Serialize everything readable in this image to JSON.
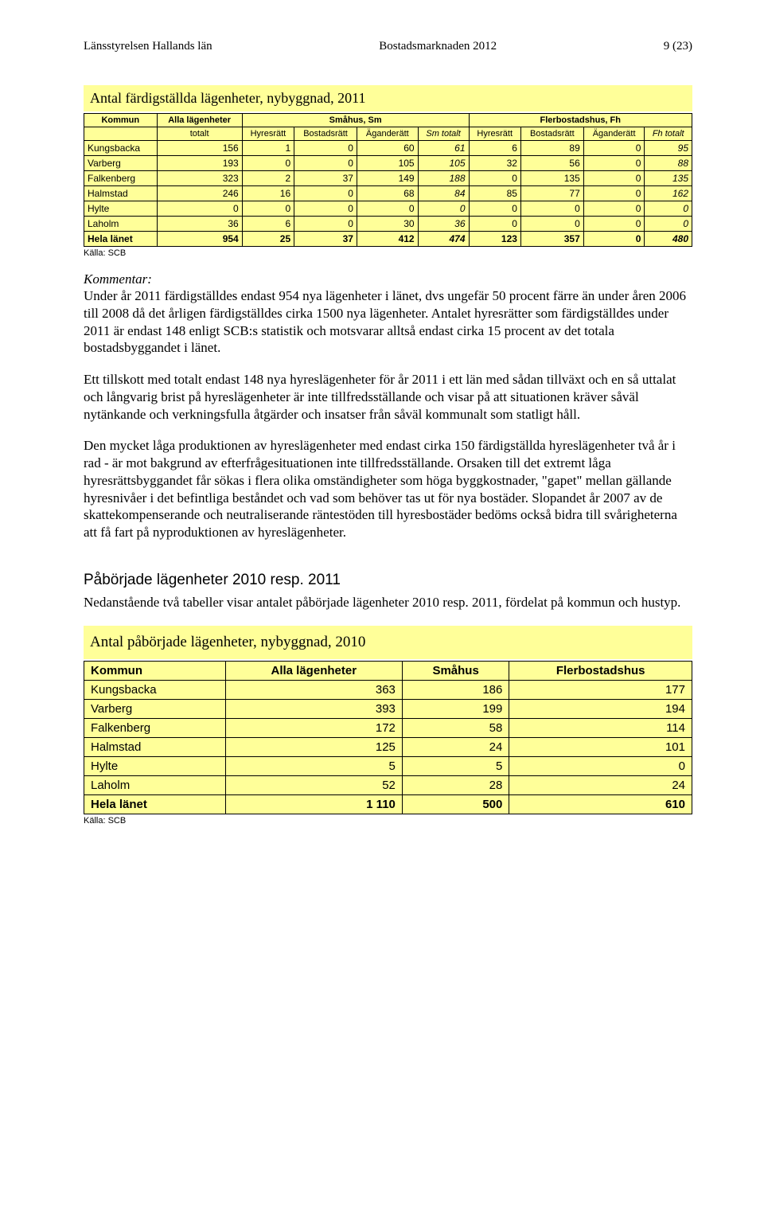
{
  "header": {
    "left": "Länsstyrelsen Hallands län",
    "center": "Bostadsmarknaden 2012",
    "right": "9 (23)"
  },
  "table1": {
    "title": "Antal färdigställda lägenheter, nybyggnad, 2011",
    "group_headers": [
      "Kommun",
      "Alla lägenheter",
      "Småhus, Sm",
      "Flerbostadshus, Fh"
    ],
    "sub_headers": [
      "",
      "totalt",
      "Hyresrätt",
      "Bostadsrätt",
      "Äganderätt",
      "Sm totalt",
      "Hyresrätt",
      "Bostadsrätt",
      "Äganderätt",
      "Fh totalt"
    ],
    "rows": [
      [
        "Kungsbacka",
        "156",
        "1",
        "0",
        "60",
        "61",
        "6",
        "89",
        "0",
        "95"
      ],
      [
        "Varberg",
        "193",
        "0",
        "0",
        "105",
        "105",
        "32",
        "56",
        "0",
        "88"
      ],
      [
        "Falkenberg",
        "323",
        "2",
        "37",
        "149",
        "188",
        "0",
        "135",
        "0",
        "135"
      ],
      [
        "Halmstad",
        "246",
        "16",
        "0",
        "68",
        "84",
        "85",
        "77",
        "0",
        "162"
      ],
      [
        "Hylte",
        "0",
        "0",
        "0",
        "0",
        "0",
        "0",
        "0",
        "0",
        "0"
      ],
      [
        "Laholm",
        "36",
        "6",
        "0",
        "30",
        "36",
        "0",
        "0",
        "0",
        "0"
      ]
    ],
    "total": [
      "Hela länet",
      "954",
      "25",
      "37",
      "412",
      "474",
      "123",
      "357",
      "0",
      "480"
    ],
    "italic_cols": [
      5,
      9
    ],
    "source": "Källa: SCB",
    "colors": {
      "bg": "#ffff99",
      "border": "#000000"
    }
  },
  "kommentar": {
    "label": "Kommentar:",
    "p1": "Under år 2011 färdigställdes endast 954 nya lägenheter i länet, dvs ungefär 50 procent färre än under åren 2006 till 2008 då det årligen färdigställdes cirka 1500 nya lägenheter. Antalet hyresrätter som färdigställdes under 2011 är endast 148 enligt SCB:s statistik och motsvarar alltså endast cirka 15 procent av det totala bostadsbyggandet i länet.",
    "p2": "Ett tillskott med totalt endast 148 nya hyreslägenheter för år 2011 i ett län med sådan tillväxt och en så uttalat och långvarig brist på hyreslägenheter är inte tillfredsställande och visar på att situationen kräver såväl nytänkande och verkningsfulla åtgärder och insatser från såväl kommunalt som statligt håll.",
    "p3": "Den mycket låga produktionen av hyreslägenheter med endast cirka 150 färdigställda hyreslägenheter två år i rad - är mot bakgrund av efterfrågesituationen inte tillfredsställande. Orsaken till det extremt låga hyresrättsbyggandet får sökas i flera olika omständigheter som höga byggkostnader, \"gapet\" mellan gällande hyresnivåer i det befintliga beståndet och vad som behöver tas ut för nya bostäder. Slopandet år 2007 av de skattekompenserande och neutraliserande räntestöden till hyresbostäder bedöms också bidra till svårigheterna att få fart på nyproduktionen av hyreslägenheter."
  },
  "section2": {
    "heading": "Påbörjade lägenheter 2010 resp. 2011",
    "intro": "Nedanstående två tabeller visar antalet påbörjade lägenheter 2010 resp. 2011, fördelat på kommun och hustyp."
  },
  "table2": {
    "title": "Antal påbörjade lägenheter, nybyggnad, 2010",
    "headers": [
      "Kommun",
      "Alla lägenheter",
      "Småhus",
      "Flerbostadshus"
    ],
    "rows": [
      [
        "Kungsbacka",
        "363",
        "186",
        "177"
      ],
      [
        "Varberg",
        "393",
        "199",
        "194"
      ],
      [
        "Falkenberg",
        "172",
        "58",
        "114"
      ],
      [
        "Halmstad",
        "125",
        "24",
        "101"
      ],
      [
        "Hylte",
        "5",
        "5",
        "0"
      ],
      [
        "Laholm",
        "52",
        "28",
        "24"
      ]
    ],
    "total": [
      "Hela länet",
      "1 110",
      "500",
      "610"
    ],
    "source": "Källa: SCB",
    "colors": {
      "bg": "#ffff99",
      "border": "#000000"
    }
  }
}
